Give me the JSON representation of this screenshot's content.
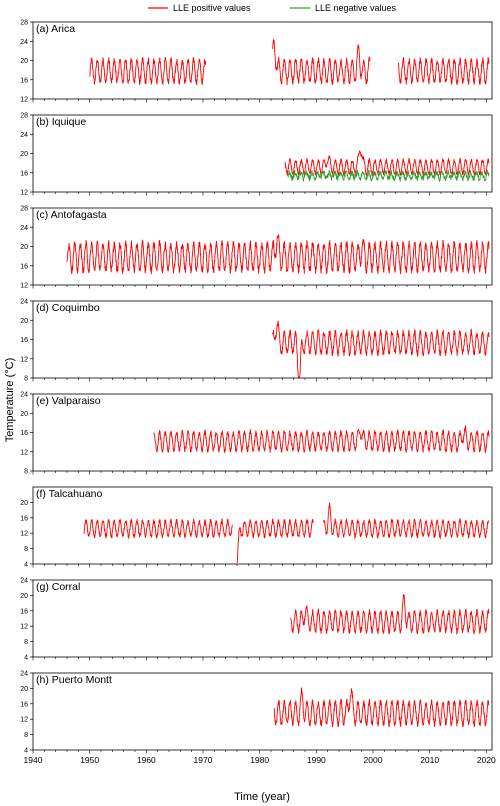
{
  "figure": {
    "legend": [
      {
        "label": "LLE positive values",
        "color": "#ff0000"
      },
      {
        "label": "LLE negative values",
        "color": "#2ca02c"
      }
    ],
    "ylabel": "Temperature (°C)",
    "xlabel": "Time (year)",
    "xticks": [
      "1940",
      "1950",
      "1960",
      "1970",
      "1980",
      "1990",
      "2000",
      "2010",
      "2020"
    ]
  },
  "chart_data": [
    {
      "type": "line",
      "title": "(a) Arica",
      "xlim": [
        1940,
        2021
      ],
      "ylim": [
        12,
        28
      ],
      "yticks": [
        12,
        16,
        20,
        24,
        28
      ],
      "segments": [
        [
          1950,
          1970.5
        ],
        [
          1982.3,
          1999.5
        ],
        [
          2004.5,
          2020.5
        ]
      ],
      "mean": 17.8,
      "amp": 2.3,
      "peaks": [
        [
          1982.6,
          25.5
        ],
        [
          1997.5,
          23.5
        ]
      ],
      "series": [
        {
          "color": "#ff0000"
        }
      ]
    },
    {
      "type": "line",
      "title": "(b) Iquique",
      "xlim": [
        1940,
        2021
      ],
      "ylim": [
        12,
        28
      ],
      "yticks": [
        12,
        16,
        20,
        24,
        28
      ],
      "segments": [
        [
          1984.5,
          2020.5
        ]
      ],
      "mean": 17.2,
      "amp": 1.4,
      "peaks": [
        [
          1992,
          20.5
        ],
        [
          1997.8,
          22.8
        ]
      ],
      "series": [
        {
          "color": "#ff0000"
        },
        {
          "color": "#2ca02c",
          "offset": -1.8,
          "from": 1985
        }
      ]
    },
    {
      "type": "line",
      "title": "(c) Antofagasta",
      "xlim": [
        1940,
        2021
      ],
      "ylim": [
        12,
        28
      ],
      "yticks": [
        12,
        16,
        20,
        24,
        28
      ],
      "segments": [
        [
          1946,
          2020.5
        ]
      ],
      "mean": 17.8,
      "amp": 2.8,
      "peaks": [
        [
          1983,
          24.5
        ],
        [
          1998,
          22.5
        ]
      ],
      "series": [
        {
          "color": "#ff0000"
        }
      ]
    },
    {
      "type": "line",
      "title": "(d) Coquimbo",
      "xlim": [
        1940,
        2021
      ],
      "ylim": [
        8,
        24
      ],
      "yticks": [
        8,
        12,
        16,
        20,
        24
      ],
      "segments": [
        [
          1982.3,
          2020.5
        ]
      ],
      "mean": 15.3,
      "amp": 2.2,
      "peaks": [
        [
          1983,
          21.5
        ],
        [
          1987,
          10
        ]
      ],
      "series": [
        {
          "color": "#ff0000"
        }
      ]
    },
    {
      "type": "line",
      "title": "(e) Valparaiso",
      "xlim": [
        1940,
        2021
      ],
      "ylim": [
        8,
        24
      ],
      "yticks": [
        8,
        12,
        16,
        20,
        24
      ],
      "segments": [
        [
          1961.3,
          2020.5
        ]
      ],
      "mean": 14.2,
      "amp": 1.9,
      "peaks": [
        [
          1997.8,
          18.5
        ],
        [
          2016,
          18
        ]
      ],
      "series": [
        {
          "color": "#ff0000"
        }
      ]
    },
    {
      "type": "line",
      "title": "(f) Talcahuano",
      "xlim": [
        1940,
        2021
      ],
      "ylim": [
        4,
        24
      ],
      "yticks": [
        4,
        8,
        12,
        16,
        20
      ],
      "segments": [
        [
          1949,
          1975.2
        ],
        [
          1976,
          1989.5
        ],
        [
          1991.3,
          2020.5
        ]
      ],
      "mean": 13.2,
      "amp": 2.0,
      "peaks": [
        [
          1992.3,
          19.5
        ],
        [
          1976,
          7.5
        ]
      ],
      "series": [
        {
          "color": "#ff0000"
        }
      ]
    },
    {
      "type": "line",
      "title": "(g) Corral",
      "xlim": [
        1940,
        2021
      ],
      "ylim": [
        4,
        24
      ],
      "yticks": [
        4,
        8,
        12,
        16,
        20,
        24
      ],
      "segments": [
        [
          1985.5,
          2020.5
        ]
      ],
      "mean": 13.2,
      "amp": 2.6,
      "peaks": [
        [
          1988,
          18.5
        ],
        [
          2005.5,
          20.5
        ]
      ],
      "series": [
        {
          "color": "#ff0000"
        }
      ]
    },
    {
      "type": "line",
      "title": "(h) Puerto Montt",
      "xlim": [
        1940,
        2021
      ],
      "ylim": [
        4,
        24
      ],
      "yticks": [
        4,
        8,
        12,
        16,
        20,
        24
      ],
      "segments": [
        [
          1982.5,
          2020.5
        ]
      ],
      "mean": 13.6,
      "amp": 2.9,
      "peaks": [
        [
          1996,
          22
        ],
        [
          1987.5,
          20
        ]
      ],
      "series": [
        {
          "color": "#ff0000"
        }
      ]
    }
  ]
}
